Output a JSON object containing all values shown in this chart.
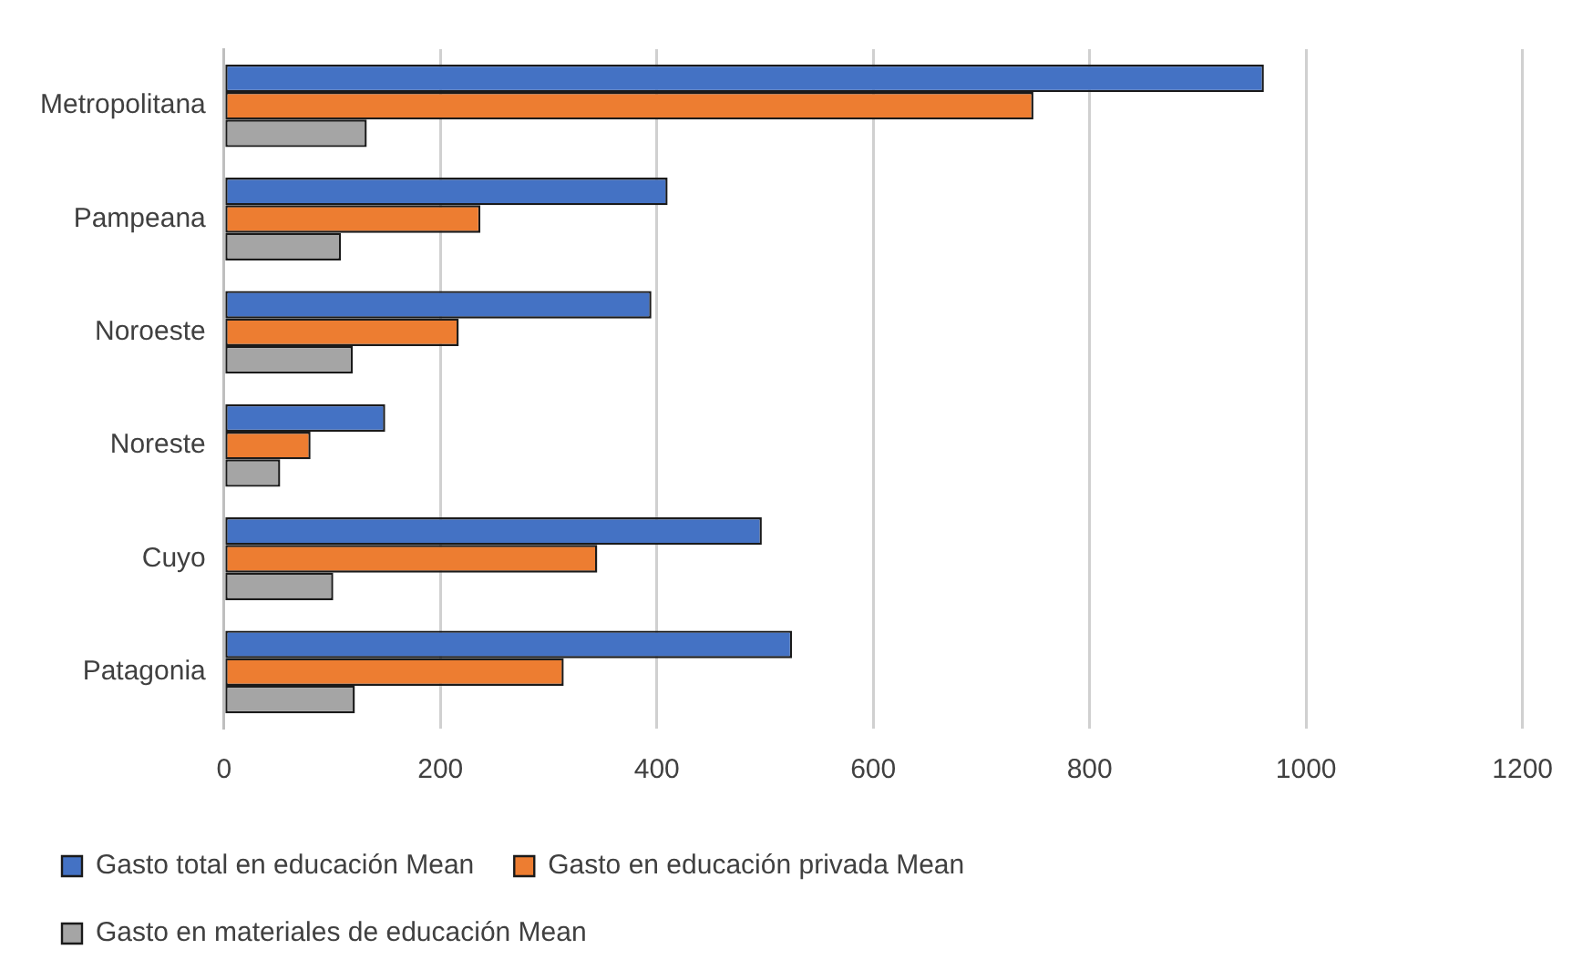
{
  "chart_data": {
    "type": "bar",
    "orientation": "horizontal",
    "categories": [
      "Metropolitana",
      "Pampeana",
      "Noroeste",
      "Noreste",
      "Cuyo",
      "Patagonia"
    ],
    "series": [
      {
        "name": "Gasto total en educación Mean",
        "color": "#4472c4",
        "values": [
          961,
          410,
          395,
          149,
          497,
          525
        ]
      },
      {
        "name": "Gasto en educación privada Mean",
        "color": "#ed7d31",
        "values": [
          748,
          237,
          217,
          80,
          345,
          314
        ]
      },
      {
        "name": "Gasto en materiales de educación Mean",
        "color": "#a5a5a5",
        "values": [
          132,
          108,
          119,
          52,
          101,
          121
        ]
      }
    ],
    "xlim": [
      0,
      1200
    ],
    "xticks": [
      0,
      200,
      400,
      600,
      800,
      1000,
      1200
    ],
    "grid": "x",
    "legend": "bottom"
  }
}
